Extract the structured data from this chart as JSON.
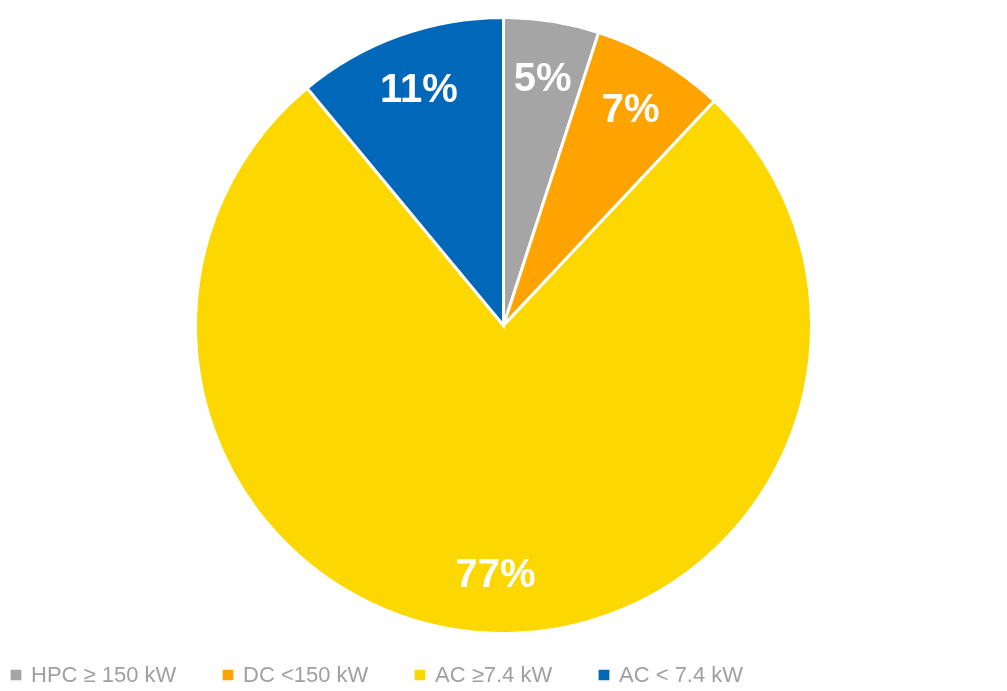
{
  "chart_data": {
    "type": "pie",
    "categories": [
      "HPC ≥ 150 kW",
      "DC <150 kW",
      "AC ≥7.4 kW",
      "AC < 7.4 kW"
    ],
    "values": [
      5,
      7,
      77,
      11
    ],
    "colors": [
      "#a5a5a5",
      "#ffa300",
      "#fcd700",
      "#0067b9"
    ],
    "value_labels": [
      "5%",
      "7%",
      "77%",
      "11%"
    ],
    "legend": "bottom"
  }
}
